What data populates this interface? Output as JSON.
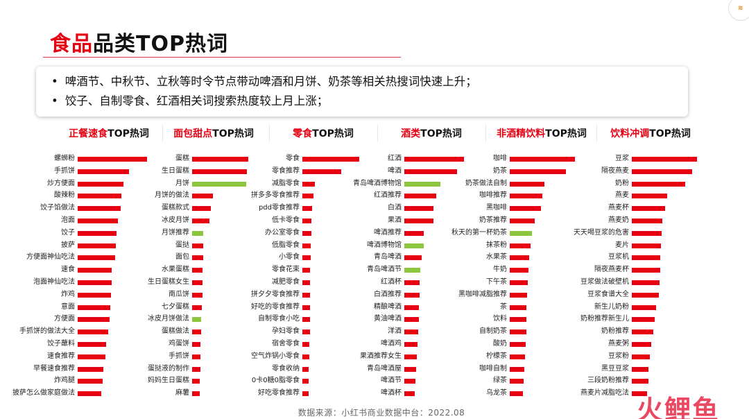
{
  "header": {
    "title_highlight": "食品",
    "title_rest": "品类TOP热词"
  },
  "summary": [
    "啤酒节、中秋节、立秋等时令节点带动啤酒和月饼、奶茶等相关热搜词快速上升；",
    "饺子、自制零食、红酒相关词搜索热度较上月上涨；"
  ],
  "colors": {
    "up": "#e60012",
    "highlight": "#8cc63f"
  },
  "chart_data": [
    {
      "type": "bar",
      "orientation": "horizontal",
      "title_red": "正餐速食",
      "title_black": "TOP热词",
      "categories": [
        "螺蛳粉",
        "手抓饼",
        "炒方便面",
        "酸辣粉",
        "饺子馅做法",
        "泡面",
        "饺子",
        "披萨",
        "方便面神仙吃法",
        "速食",
        "泡面神仙吃法",
        "炸鸡",
        "意面",
        "方便面",
        "手抓饼的做法大全",
        "饺子蘸料",
        "速食推荐",
        "早餐速食推荐",
        "炸鸡腿",
        "披萨怎么做家庭做法"
      ],
      "values": [
        100,
        74,
        66,
        63,
        62,
        58,
        56,
        55,
        54,
        49,
        49,
        48,
        47,
        46,
        44,
        41,
        40,
        37,
        36,
        34
      ],
      "highlight": [
        false,
        false,
        false,
        false,
        false,
        false,
        false,
        false,
        false,
        false,
        false,
        false,
        false,
        false,
        false,
        false,
        false,
        false,
        false,
        false
      ]
    },
    {
      "type": "bar",
      "orientation": "horizontal",
      "title_red": "面包甜点",
      "title_black": "TOP热词",
      "categories": [
        "蛋糕",
        "生日蛋糕",
        "月饼",
        "月饼的做法",
        "蛋糕款式",
        "冰皮月饼",
        "月饼推荐",
        "蛋挞",
        "面包",
        "水果蛋糕",
        "生日蛋糕女生",
        "南瓜饼",
        "七夕蛋糕",
        "冰皮月饼做法",
        "蛋糕做法",
        "鸡蛋饼",
        "手抓饼",
        "蛋挞液的制作",
        "妈妈生日蛋糕",
        "麻薯"
      ],
      "values": [
        100,
        98,
        96,
        37,
        33,
        31,
        20,
        20,
        20,
        19,
        19,
        19,
        17,
        16,
        16,
        15,
        15,
        15,
        14,
        13
      ],
      "highlight": [
        false,
        false,
        true,
        false,
        false,
        false,
        true,
        false,
        false,
        false,
        false,
        false,
        false,
        true,
        false,
        false,
        false,
        false,
        false,
        false
      ]
    },
    {
      "type": "bar",
      "orientation": "horizontal",
      "title_red": "零食",
      "title_black": "TOP热词",
      "categories": [
        "零食",
        "零食推荐",
        "减脂零食",
        "拼多多零食推荐",
        "pdd零食推荐",
        "低卡零食",
        "办公室零食",
        "低脂零食",
        "小零食",
        "零食花束",
        "减肥零食",
        "拼夕夕零食推荐",
        "好吃的零食推荐",
        "自制零食小吃",
        "孕妇零食",
        "宿舍零食",
        "空气炸锅小零食",
        "零食收纳",
        "0卡0糖0脂零食",
        "好吃零食推荐"
      ],
      "values": [
        100,
        68,
        22,
        19,
        17,
        16,
        16,
        15,
        15,
        14,
        14,
        13,
        13,
        13,
        13,
        12,
        12,
        11,
        11,
        11
      ],
      "highlight": [
        false,
        false,
        false,
        false,
        false,
        false,
        false,
        false,
        false,
        false,
        false,
        false,
        false,
        false,
        false,
        false,
        false,
        false,
        false,
        false
      ]
    },
    {
      "type": "bar",
      "orientation": "horizontal",
      "title_red": "酒类",
      "title_black": "TOP热词",
      "categories": [
        "红酒",
        "啤酒",
        "青岛啤酒博物馆",
        "红酒推荐",
        "白酒",
        "果酒",
        "啤酒推荐",
        "啤酒博物馆",
        "青岛啤酒",
        "青岛啤酒节",
        "红酒杯",
        "白酒推荐",
        "精酿啤酒",
        "黄油啤酒",
        "洋酒",
        "啤酒鸡",
        "果酒推荐女生",
        "青岛啤酒屋",
        "啤酒节",
        "啤酒杯"
      ],
      "values": [
        100,
        88,
        61,
        53,
        49,
        49,
        33,
        32,
        29,
        27,
        26,
        25,
        24,
        24,
        23,
        22,
        21,
        20,
        19,
        18
      ],
      "highlight": [
        false,
        false,
        true,
        false,
        false,
        false,
        false,
        true,
        false,
        true,
        false,
        false,
        false,
        false,
        false,
        false,
        false,
        false,
        false,
        false
      ]
    },
    {
      "type": "bar",
      "orientation": "horizontal",
      "title_red": "非酒精饮料",
      "title_black": "TOP热词",
      "categories": [
        "咖啡",
        "奶茶",
        "奶茶做法自制",
        "咖啡推荐",
        "黑咖啡",
        "奶茶推荐",
        "秋天的第一杯奶茶",
        "抹茶粉",
        "水果茶",
        "牛奶",
        "下午茶",
        "黑咖啡减脂推荐",
        "茶",
        "饮料",
        "自制奶茶",
        "酸奶",
        "柠檬茶",
        "咖啡自制",
        "绿茶",
        "乌龙茶"
      ],
      "values": [
        100,
        86,
        53,
        50,
        48,
        38,
        34,
        32,
        30,
        29,
        28,
        27,
        26,
        25,
        25,
        24,
        23,
        22,
        21,
        20
      ],
      "highlight": [
        false,
        false,
        false,
        false,
        false,
        false,
        true,
        false,
        false,
        false,
        false,
        false,
        false,
        false,
        false,
        false,
        false,
        false,
        false,
        false
      ]
    },
    {
      "type": "bar",
      "orientation": "horizontal",
      "title_red": "饮料冲调",
      "title_black": "TOP热词",
      "categories": [
        "豆浆",
        "隔夜燕麦",
        "奶粉",
        "燕麦",
        "燕麦杯",
        "燕麦奶",
        "天天喝豆浆的危害",
        "麦片",
        "豆浆机",
        "隔夜燕麦杯",
        "豆浆做法破壁机",
        "豆浆食谱大全",
        "新生儿奶粉",
        "奶粉推荐新生儿",
        "奶粉推荐",
        "燕麦粥",
        "豆浆粉",
        "黑豆豆浆",
        "三段奶粉推荐",
        "燕麦片减脂吃法"
      ],
      "values": [
        100,
        93,
        82,
        54,
        51,
        47,
        46,
        45,
        44,
        44,
        43,
        42,
        37,
        35,
        33,
        30,
        28,
        26,
        25,
        23
      ],
      "highlight": [
        false,
        false,
        false,
        false,
        false,
        false,
        false,
        false,
        false,
        false,
        false,
        false,
        false,
        false,
        false,
        false,
        false,
        false,
        false,
        false
      ]
    }
  ],
  "footer": {
    "source": "数据来源：小红书商业数据中台：2022.08",
    "watermark": "火鲤鱼"
  }
}
